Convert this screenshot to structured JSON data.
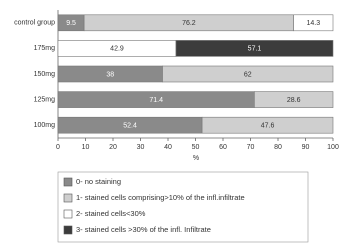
{
  "chart_data": {
    "type": "stacked-bar-horizontal",
    "categories": [
      "control group",
      "175mg",
      "150mg",
      "125mg",
      "100mg"
    ],
    "series": [
      {
        "name": "0- no staining",
        "color": "#8a8a8a",
        "values": [
          9.5,
          null,
          38,
          71.4,
          52.4
        ]
      },
      {
        "name": "1- stained cells comprising>10% of the infl.infiltrate",
        "color": "#cfcfcf",
        "values": [
          76.2,
          null,
          62,
          28.6,
          47.6
        ]
      },
      {
        "name": "2- stained cells<30%",
        "color": "#ffffff",
        "values": [
          14.3,
          42.9,
          null,
          null,
          null
        ]
      },
      {
        "name": "3- stained cells >30% of the infl. Infiltrate",
        "color": "#3c3c3c",
        "values": [
          null,
          57.1,
          null,
          null,
          null
        ]
      }
    ],
    "xlabel": "%",
    "xlim": [
      0,
      100
    ],
    "xticks": [
      0,
      10,
      20,
      30,
      40,
      50,
      60,
      70,
      80,
      90,
      100
    ]
  }
}
